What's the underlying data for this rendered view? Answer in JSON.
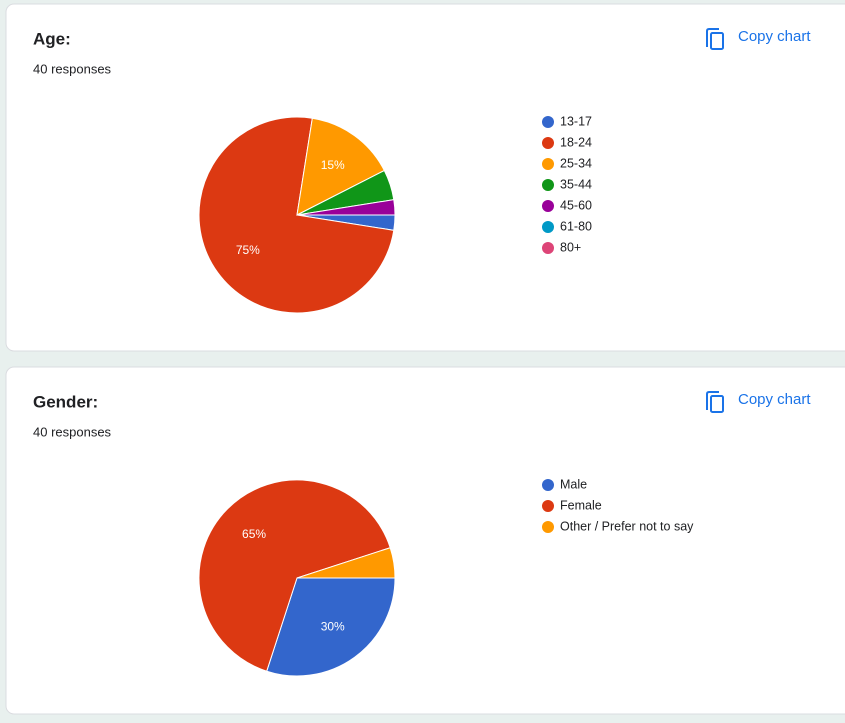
{
  "chart_data": [
    {
      "type": "pie",
      "title": "Age:",
      "subtitle": "40 responses",
      "action": "Copy chart",
      "categories": [
        "13-17",
        "18-24",
        "25-34",
        "35-44",
        "45-60",
        "61-80",
        "80+"
      ],
      "values": [
        2.5,
        75,
        15,
        5,
        2.5,
        0,
        0
      ],
      "value_labels": [
        null,
        "75%",
        "15%",
        null,
        null,
        null,
        null
      ],
      "colors": [
        "#3366cc",
        "#dc3912",
        "#ff9900",
        "#109618",
        "#990099",
        "#0099c6",
        "#dd4477"
      ]
    },
    {
      "type": "pie",
      "title": "Gender:",
      "subtitle": "40 responses",
      "action": "Copy chart",
      "categories": [
        "Male",
        "Female",
        "Other / Prefer not to say"
      ],
      "values": [
        30,
        65,
        5
      ],
      "value_labels": [
        "30%",
        "65%",
        null
      ],
      "colors": [
        "#3366cc",
        "#dc3912",
        "#ff9900"
      ]
    }
  ]
}
